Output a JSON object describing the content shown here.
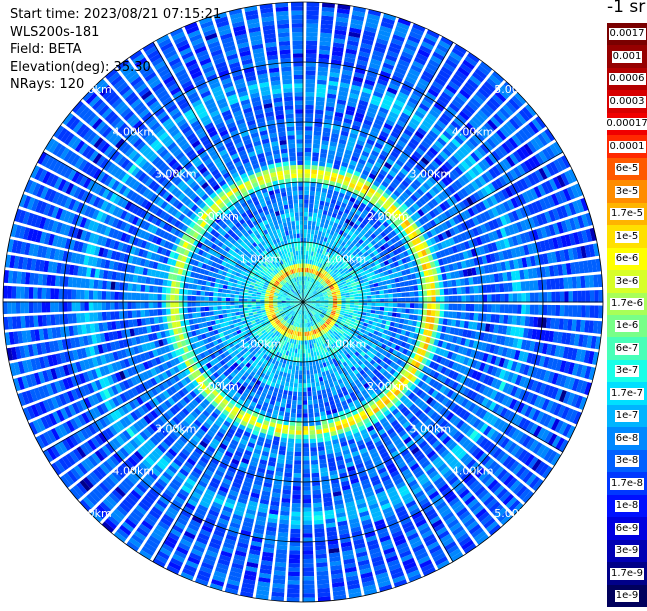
{
  "header": {
    "start_time": "Start time: 2023/08/21 07:15:21",
    "station": "WLS200s-181",
    "field": "Field: BETA",
    "elevation": "Elevation(deg): 35.30",
    "nrays": "NRays: 120"
  },
  "chart_data": {
    "type": "heatmap",
    "subtype": "polar-ppi",
    "field": "BETA",
    "rays": 120,
    "range_rings_km": [
      1,
      2,
      3,
      4,
      5
    ],
    "ring_labels": [
      "1.00km",
      "2.00km",
      "3.00km",
      "4.00km",
      "5.00km"
    ],
    "max_range_km": 5.0,
    "spoke_angles_deg": [
      0,
      30,
      60,
      90,
      120,
      150,
      180,
      210,
      240,
      270,
      300,
      330
    ],
    "label_angles_deg": [
      45,
      135,
      225,
      315
    ],
    "features": {
      "inner_ring_radius_km": 0.45,
      "aerosol_ring_radius_km": 2.15,
      "outer_band_radius_km": 3.6
    },
    "colorbar": {
      "title": "-1 sr",
      "ticks": [
        "0.0017",
        "0.001",
        "0.0006",
        "0.0003",
        "0.00017",
        "0.0001",
        "6e-5",
        "3e-5",
        "1.7e-5",
        "1e-5",
        "6e-6",
        "3e-6",
        "1.7e-6",
        "1e-6",
        "6e-7",
        "3e-7",
        "1.7e-7",
        "1e-7",
        "6e-8",
        "3e-8",
        "1.7e-8",
        "1e-8",
        "6e-9",
        "3e-9",
        "1.7e-9",
        "1e-9"
      ],
      "colors": [
        "#7a0000",
        "#960000",
        "#b40000",
        "#d80000",
        "#f00000",
        "#ff2800",
        "#ff5a00",
        "#ff8c00",
        "#ffb400",
        "#ffe000",
        "#ffff00",
        "#d8ff28",
        "#a8ff58",
        "#78ff88",
        "#48ffb8",
        "#18ffe8",
        "#00e0ff",
        "#00b4ff",
        "#0088ff",
        "#0060ff",
        "#0038ff",
        "#0010ff",
        "#0000e0",
        "#0000b4",
        "#000088",
        "#00005c"
      ]
    },
    "grid": true
  }
}
